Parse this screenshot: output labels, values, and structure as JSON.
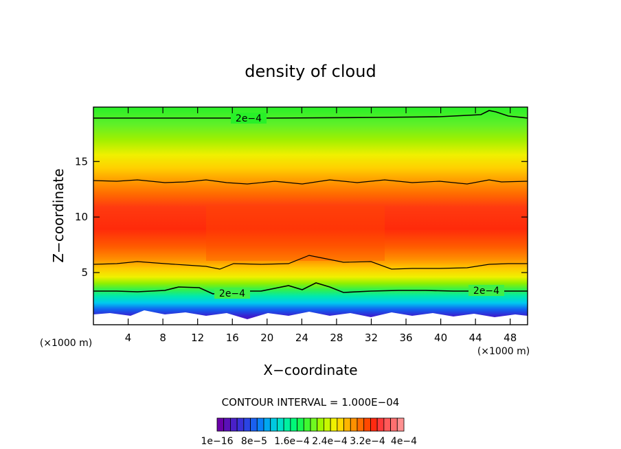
{
  "chart_data": {
    "type": "heatmap",
    "title": "density of cloud",
    "xlabel": "X−coordinate",
    "ylabel": "Z−coordinate",
    "x_unit": "(×1000 m)",
    "y_unit": "(×1000 m)",
    "xlim": [
      0,
      50
    ],
    "ylim": [
      0.3,
      19.9
    ],
    "x_ticks": [
      4,
      8,
      12,
      16,
      20,
      24,
      28,
      32,
      36,
      40,
      44,
      48
    ],
    "y_ticks": [
      5,
      10,
      15
    ],
    "contour_interval_text": "CONTOUR INTERVAL = 1.000E−04",
    "contour_labels": [
      {
        "text": "2e−4",
        "x": 19.5,
        "z": 18.9
      },
      {
        "text": "2e−4",
        "x": 15.0,
        "z": 2.9
      },
      {
        "text": "2e−4",
        "x": 45.8,
        "z": 3.1
      }
    ],
    "colorbar": {
      "colors": [
        "#6a00a8",
        "#5a10b8",
        "#4a20c8",
        "#3a30d8",
        "#2a44e4",
        "#1a60f0",
        "#0a80f8",
        "#00a8f0",
        "#00c8e0",
        "#00e0c8",
        "#00f0a0",
        "#00f878",
        "#18f850",
        "#40f830",
        "#70f820",
        "#a0f800",
        "#c8f800",
        "#f0f000",
        "#ffd800",
        "#ffb400",
        "#ff9000",
        "#ff6c00",
        "#ff4800",
        "#ff2a10",
        "#ff3a3a",
        "#ff5a5a",
        "#ff7070",
        "#ff9090"
      ],
      "tick_labels": [
        "1e−16",
        "8e−5",
        "1.6e−4",
        "2.4e−4",
        "3.2e−4",
        "4e−4"
      ]
    }
  }
}
